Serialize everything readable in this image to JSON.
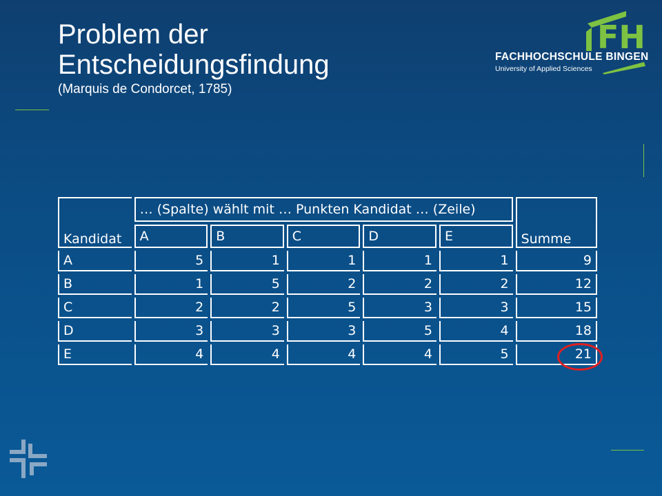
{
  "slide": {
    "title_line1": "Problem der",
    "title_line2": "Entscheidungsfindung",
    "subtitle": "(Marquis de Condorcet, 1785)"
  },
  "logo": {
    "letters": "FH",
    "name": "FACHHOCHSCHULE BINGEN",
    "tagline": "University of Applied Sciences",
    "accent_color": "#7dc242"
  },
  "table": {
    "corner_label": "Kandidat",
    "span_header": "… (Spalte) wählt mit … Punkten Kandidat … (Zeile)",
    "columns": [
      "A",
      "B",
      "C",
      "D",
      "E"
    ],
    "sum_label": "Summe",
    "rows": [
      {
        "label": "A",
        "values": [
          "5",
          "1",
          "1",
          "1",
          "1"
        ],
        "sum": "9"
      },
      {
        "label": "B",
        "values": [
          "1",
          "5",
          "2",
          "2",
          "2"
        ],
        "sum": "12"
      },
      {
        "label": "C",
        "values": [
          "2",
          "2",
          "5",
          "3",
          "3"
        ],
        "sum": "15"
      },
      {
        "label": "D",
        "values": [
          "3",
          "3",
          "3",
          "5",
          "4"
        ],
        "sum": "18"
      },
      {
        "label": "E",
        "values": [
          "4",
          "4",
          "4",
          "4",
          "5"
        ],
        "sum": "21"
      }
    ]
  },
  "highlight": {
    "color": "#e02020",
    "target": "table.rows.4.sum"
  }
}
